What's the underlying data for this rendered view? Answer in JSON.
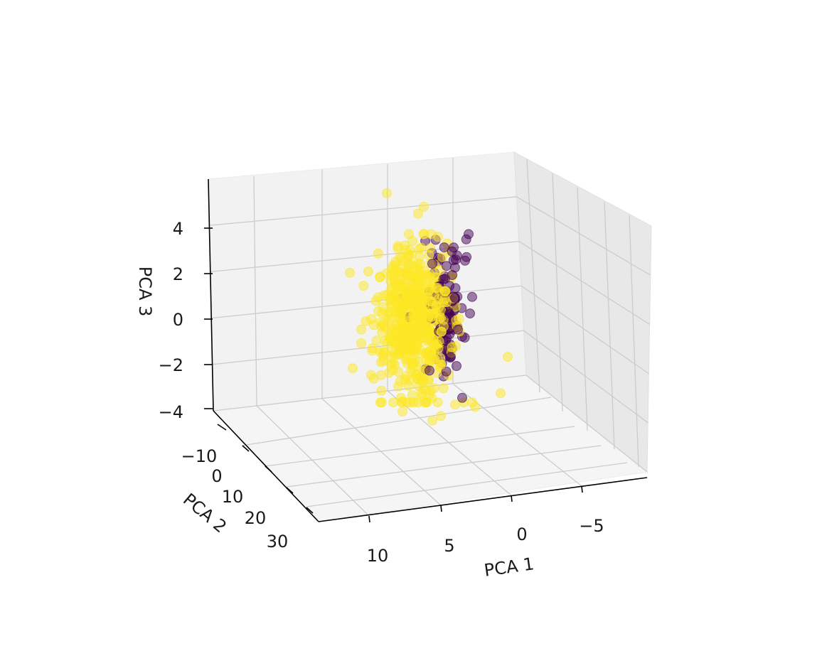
{
  "chart_data": {
    "type": "scatter3d",
    "title": "",
    "axes": {
      "x": {
        "label": "PCA 1",
        "ticks": [
          10,
          5,
          0,
          -5
        ],
        "tick_labels": [
          "10",
          "5",
          "0",
          "−5"
        ],
        "range": [
          13.5,
          -8.5
        ]
      },
      "y": {
        "label": "PCA 2",
        "ticks": [
          -10,
          0,
          10,
          20,
          30
        ],
        "tick_labels": [
          "−10",
          "0",
          "10",
          "20",
          "30"
        ],
        "range": [
          -15,
          33
        ]
      },
      "z": {
        "label": "PCA 3",
        "ticks": [
          -4,
          -2,
          0,
          2,
          4
        ],
        "tick_labels": [
          "−4",
          "−2",
          "0",
          "2",
          "4"
        ],
        "range": [
          -4,
          6
        ]
      }
    },
    "grid": true,
    "legend": "none",
    "series": [
      {
        "color": "#fde725",
        "points": [
          [
            3.4,
            0,
            5.6
          ],
          [
            1.2,
            0,
            4.7
          ],
          [
            0.8,
            0,
            5.0
          ],
          [
            1.6,
            0,
            3.5
          ],
          [
            1.0,
            0,
            3.2
          ],
          [
            6.0,
            0,
            2.1
          ],
          [
            3.6,
            0,
            1.1
          ],
          [
            4.0,
            0,
            0.4
          ],
          [
            4.3,
            0,
            -0.2
          ],
          [
            5.2,
            0,
            -0.4
          ],
          [
            5.2,
            0,
            -1.0
          ],
          [
            5.8,
            0,
            -2.1
          ],
          [
            3.8,
            0,
            -2.4
          ],
          [
            -1.4,
            0,
            -3.7
          ],
          [
            -2.8,
            0,
            -3.8
          ],
          [
            -4.6,
            0,
            -3.2
          ],
          [
            -5.1,
            0,
            -1.6
          ],
          [
            2.4,
            0,
            -3.4
          ],
          [
            0.2,
            0,
            -4.4
          ],
          [
            -0.4,
            0,
            -4.2
          ],
          [
            2.3,
            0,
            -4.0
          ],
          [
            2.6,
            0,
            -2.9
          ],
          [
            2.2,
            0,
            2.6
          ],
          [
            1.8,
            0,
            3.1
          ],
          [
            1.1,
            0,
            2.8
          ],
          [
            2.7,
            0,
            1.5
          ],
          [
            2.2,
            0,
            -0.5
          ],
          [
            1.8,
            0,
            -1.3
          ],
          [
            1.5,
            0,
            0.0
          ],
          [
            1.0,
            0,
            1.0
          ],
          [
            0.6,
            0,
            -0.9
          ]
        ],
        "cluster": {
          "center": [
            1.5,
            0,
            0.0
          ],
          "spread": [
            1.3,
            0,
            1.6
          ],
          "count": 540
        }
      },
      {
        "color": "#440154",
        "points": [
          [
            -1.9,
            0,
            -3.4
          ],
          [
            -0.8,
            0,
            2.4
          ],
          [
            -1.2,
            0,
            2.0
          ],
          [
            -1.4,
            0,
            1.0
          ],
          [
            -1.6,
            0,
            -0.4
          ],
          [
            -1.1,
            0,
            -1.6
          ],
          [
            0.2,
            0,
            2.5
          ],
          [
            0.4,
            0,
            -2.2
          ],
          [
            -1.5,
            0,
            -2.0
          ],
          [
            -1.0,
            0,
            0.3
          ]
        ],
        "cluster": {
          "center": [
            -0.7,
            0,
            0.4
          ],
          "spread": [
            0.8,
            0,
            1.4
          ],
          "count": 110
        }
      }
    ]
  }
}
